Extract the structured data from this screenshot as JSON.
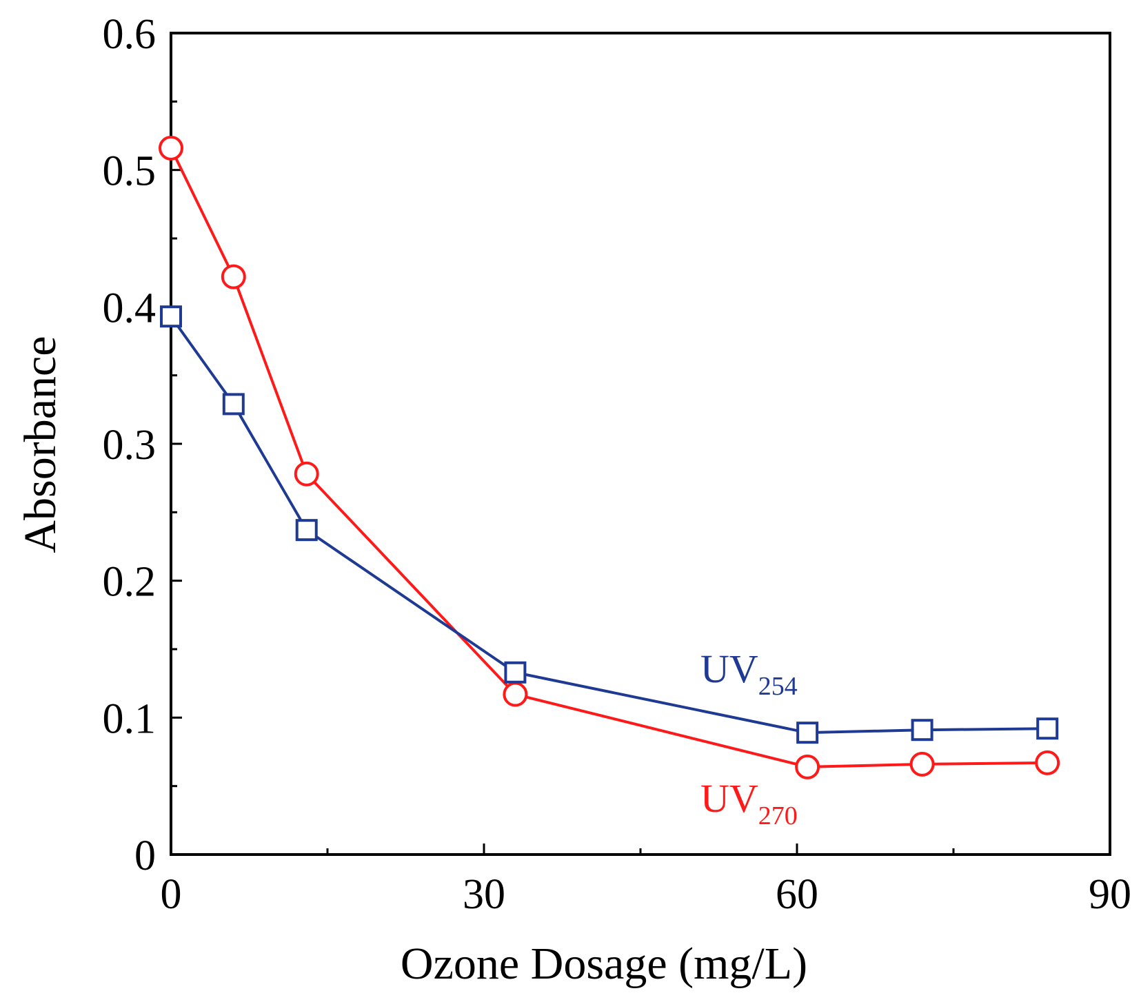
{
  "chart_data": {
    "type": "line",
    "title": "",
    "xlabel": "Ozone Dosage (mg/L)",
    "ylabel": "Absorbance",
    "xlim": [
      0,
      90
    ],
    "ylim": [
      0,
      0.6
    ],
    "xticks": [
      0,
      30,
      60,
      90
    ],
    "xtick_labels": [
      "0",
      "30",
      "60",
      "90"
    ],
    "yticks": [
      0,
      0.1,
      0.2,
      0.3,
      0.4,
      0.5,
      0.6
    ],
    "ytick_labels": [
      "0",
      "0.1",
      "0.2",
      "0.3",
      "0.4",
      "0.5",
      "0.6"
    ],
    "x_minor_step": 15,
    "y_minor_step": 0.05,
    "grid": false,
    "series": [
      {
        "name": "UV254",
        "label_main": "UV",
        "label_sub": "254",
        "color": "#1f3a93",
        "marker": "square",
        "x": [
          0,
          6,
          13,
          33,
          61,
          72,
          84
        ],
        "values": [
          0.393,
          0.329,
          0.237,
          0.133,
          0.089,
          0.091,
          0.092
        ]
      },
      {
        "name": "UV270",
        "label_main": "UV",
        "label_sub": "270",
        "color": "#ff1a1a",
        "marker": "circle",
        "x": [
          0,
          6,
          13,
          33,
          61,
          72,
          84
        ],
        "values": [
          0.516,
          0.422,
          0.278,
          0.117,
          0.064,
          0.066,
          0.067
        ]
      }
    ]
  }
}
